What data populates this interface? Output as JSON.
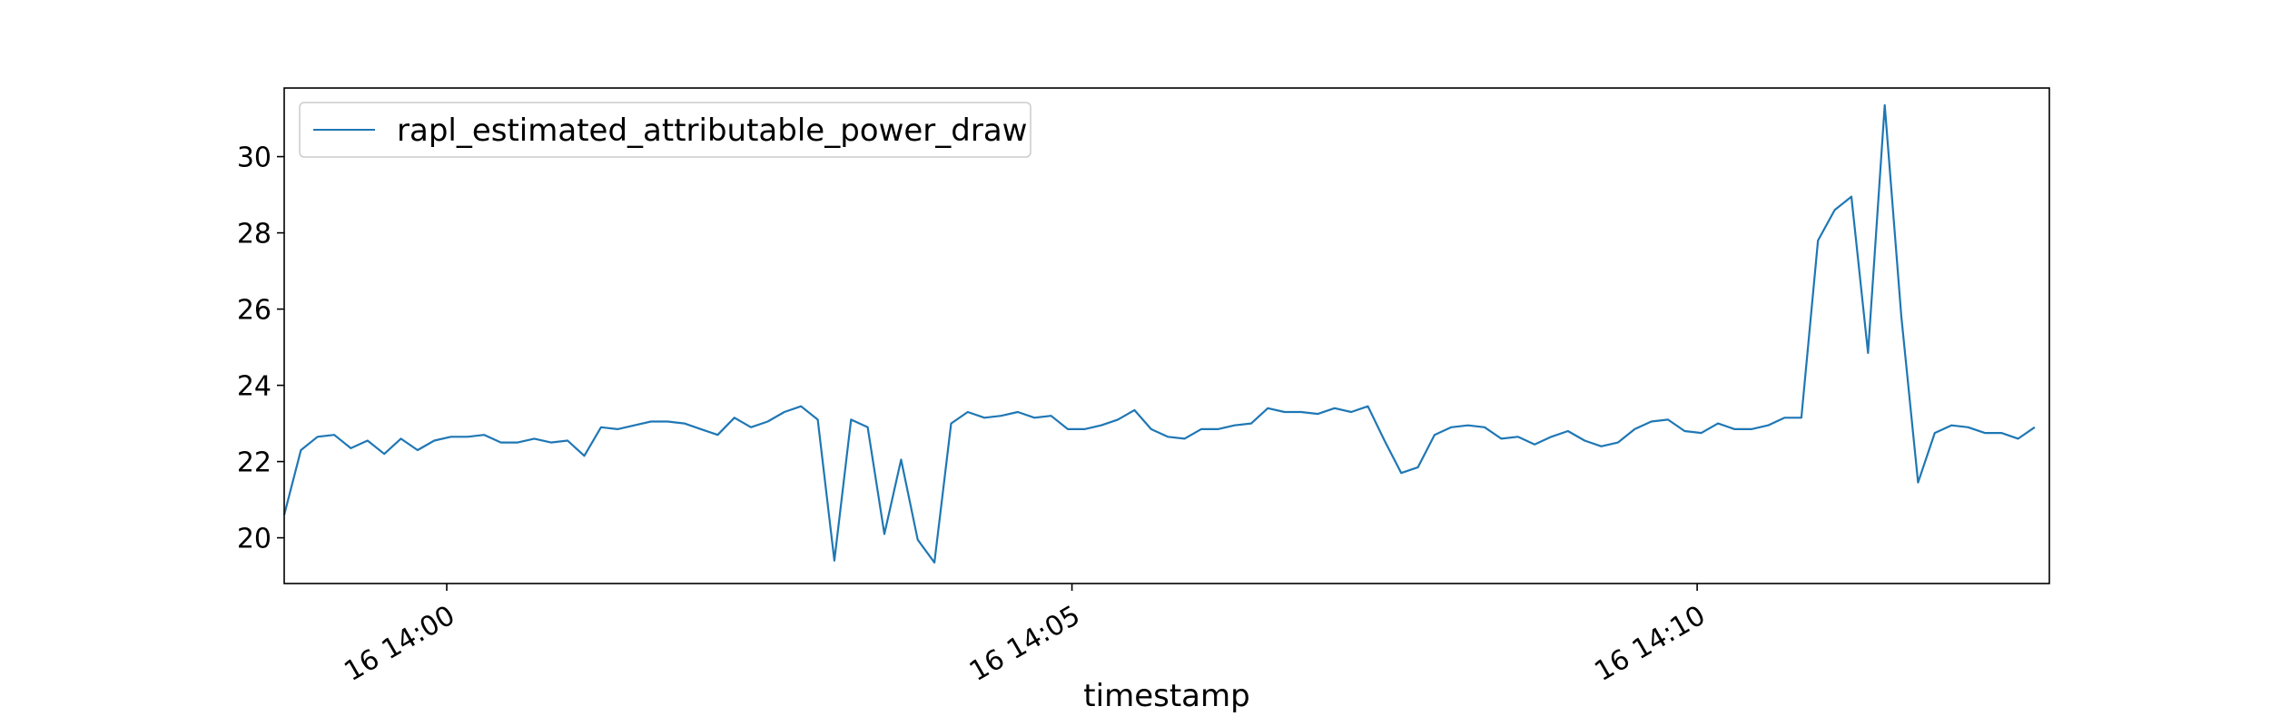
{
  "chart_data": {
    "type": "line",
    "title": "",
    "xlabel": "timestamp",
    "ylabel": "",
    "grid": false,
    "legend_placement": "upper-left",
    "x_unit": "time",
    "xlim": [
      "2024-01-16T13:58:42",
      "2024-01-16T14:12:49"
    ],
    "ylim": [
      18.8,
      31.8
    ],
    "x_ticks": [
      {
        "t": "2024-01-16T14:00:00",
        "label": "16 14:00"
      },
      {
        "t": "2024-01-16T14:05:00",
        "label": "16 14:05"
      },
      {
        "t": "2024-01-16T14:10:00",
        "label": "16 14:10"
      }
    ],
    "y_ticks": [
      {
        "v": 20,
        "label": "20"
      },
      {
        "v": 22,
        "label": "22"
      },
      {
        "v": 24,
        "label": "24"
      },
      {
        "v": 26,
        "label": "26"
      },
      {
        "v": 28,
        "label": "28"
      },
      {
        "v": 30,
        "label": "30"
      }
    ],
    "series": [
      {
        "name": "rapl_estimated_attributable_power_draw",
        "color": "#1f77b4",
        "sample_interval_s": 8,
        "start": "2024-01-16T13:58:42",
        "values": [
          20.6,
          22.3,
          22.65,
          22.7,
          22.35,
          22.55,
          22.2,
          22.6,
          22.3,
          22.55,
          22.65,
          22.65,
          22.7,
          22.5,
          22.5,
          22.6,
          22.5,
          22.55,
          22.15,
          22.9,
          22.85,
          22.95,
          23.05,
          23.05,
          23.0,
          22.85,
          22.7,
          23.15,
          22.9,
          23.05,
          23.3,
          23.45,
          23.1,
          19.4,
          23.1,
          22.9,
          20.1,
          22.05,
          19.95,
          19.35,
          23.0,
          23.3,
          23.15,
          23.2,
          23.3,
          23.15,
          23.2,
          22.85,
          22.85,
          22.95,
          23.1,
          23.35,
          22.85,
          22.65,
          22.6,
          22.85,
          22.85,
          22.95,
          23.0,
          23.4,
          23.3,
          23.3,
          23.25,
          23.4,
          23.3,
          23.45,
          22.55,
          21.7,
          21.85,
          22.7,
          22.9,
          22.95,
          22.9,
          22.6,
          22.65,
          22.45,
          22.65,
          22.8,
          22.55,
          22.4,
          22.5,
          22.85,
          23.05,
          23.1,
          22.8,
          22.75,
          23.0,
          22.85,
          22.85,
          22.95,
          23.15,
          23.15,
          27.8,
          28.6,
          28.95,
          24.85,
          31.35,
          25.8,
          21.45,
          22.75,
          22.95,
          22.9,
          22.75,
          22.75,
          22.6,
          22.9
        ]
      }
    ]
  }
}
